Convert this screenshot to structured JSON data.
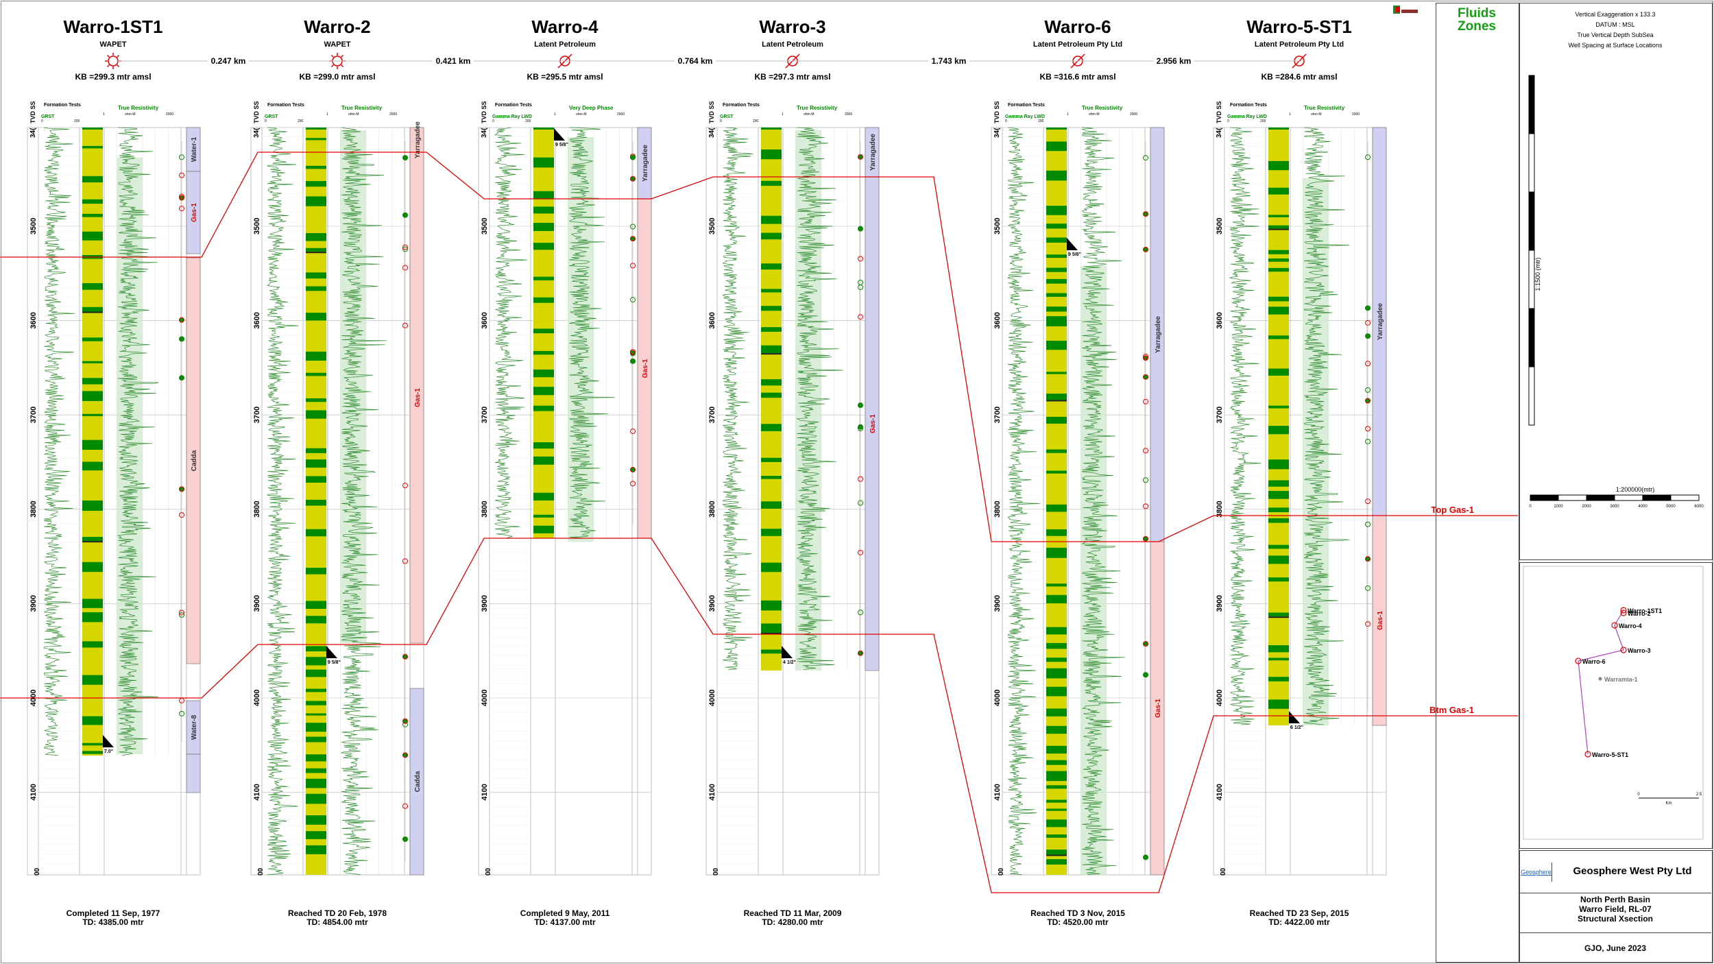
{
  "wells": [
    {
      "name": "Warro-1ST1",
      "operator": "WAPET",
      "kb": "KB =299.3 mtr amsl",
      "footer1": "Completed 11 Sep, 1977",
      "footer2": "TD: 4385.00 mtr",
      "symbol": "sun",
      "gr_label": "GRST",
      "res_label": "True Resistivity",
      "res_unit": "ohm-M",
      "depths": [
        "3500",
        "3600",
        "3700",
        "3800",
        "3900",
        "4000",
        "4100"
      ],
      "top_depth": "34(",
      "zones": [
        "Water-1",
        "Gas-1",
        "Cadda",
        "Water-8"
      ],
      "casing": "7.0\""
    },
    {
      "name": "Warro-2",
      "operator": "WAPET",
      "kb": "KB =299.0 mtr amsl",
      "footer1": "Reached TD 20 Feb, 1978",
      "footer2": "TD: 4854.00 mtr",
      "symbol": "sun",
      "gr_label": "GRST",
      "res_label": "True Resistivity",
      "res_unit": "ohm-M",
      "depths": [
        "3500",
        "3600",
        "3700",
        "3800",
        "3900",
        "4000",
        "4100"
      ],
      "top_depth": "34(",
      "zones": [
        "Yarragadee",
        "Gas-1",
        "Cadda"
      ],
      "casing": "9 5/8\""
    },
    {
      "name": "Warro-4",
      "operator": "Latent Petroleum",
      "kb": "KB =295.5 mtr amsl",
      "footer1": "Completed 9 May, 2011",
      "footer2": "TD: 4137.00 mtr",
      "symbol": "dry",
      "gr_label": "Gamma Ray LWD",
      "res_label": "Very Deep Phase",
      "res_unit": "ohm-M",
      "depths": [
        "3500",
        "3600",
        "3700",
        "3800",
        "3900",
        "4000",
        "4100"
      ],
      "top_depth": "34(",
      "zones": [
        "Yarragadee",
        "Gas-1"
      ],
      "casing": "9 5/8\""
    },
    {
      "name": "Warro-3",
      "operator": "Latent Petroleum",
      "kb": "KB =297.3 mtr amsl",
      "footer1": "Reached TD 11 Mar, 2009",
      "footer2": "TD: 4280.00 mtr",
      "symbol": "dry",
      "gr_label": "GRST",
      "res_label": "True Resistivity",
      "res_unit": "ohm-M",
      "depths": [
        "3500",
        "3600",
        "3700",
        "3800",
        "3900",
        "4000",
        "4100"
      ],
      "top_depth": "34(",
      "zones": [
        "Yarragadee",
        "Gas-1"
      ],
      "casing": "4 1/2\""
    },
    {
      "name": "Warro-6",
      "operator": "Latent Petroleum Pty Ltd",
      "kb": "KB =316.6 mtr amsl",
      "footer1": "Reached TD 3 Nov, 2015",
      "footer2": "TD: 4520.00 mtr",
      "symbol": "dry",
      "gr_label": "Gamma Ray LWD",
      "res_label": "True Resistivity",
      "res_unit": "ohm-M",
      "depths": [
        "3500",
        "3600",
        "3700",
        "3800",
        "3900",
        "4000",
        "4100"
      ],
      "top_depth": "34(",
      "zones": [
        "Yarragadee",
        "Gas-1"
      ],
      "casing": "9 5/8\""
    },
    {
      "name": "Warro-5-ST1",
      "operator": "Latent Petroleum Pty Ltd",
      "kb": "KB =284.6 mtr amsl",
      "footer1": "Reached TD 23 Sep, 2015",
      "footer2": "TD: 4422.00 mtr",
      "symbol": "dry",
      "gr_label": "Gamma Ray LWD",
      "res_label": "True Resistivity",
      "res_unit": "ohm-M",
      "depths": [
        "3500",
        "3600",
        "3700",
        "3800",
        "3900",
        "4000",
        "4100"
      ],
      "top_depth": "34(",
      "zones": [
        "Yarragadee",
        "Gas-1"
      ],
      "casing": "6 1/2\""
    }
  ],
  "spacings": [
    "0.247 km",
    "0.421 km",
    "0.764 km",
    "1.743 km",
    "2.956 km"
  ],
  "header_labels": {
    "formation_tests": "Formation Tests",
    "tvd": "TVD SS",
    "api": "api",
    "zero": "0",
    "scale_max": "200",
    "res_min": "1",
    "res_max": "2000"
  },
  "fluids_title_1": "Fluids",
  "fluids_title_2": "Zones",
  "markers": {
    "top": "Top Gas-1",
    "bottom": "Btm Gas-1"
  },
  "scale_panel": {
    "lines": [
      "Vertical Exaggeration x 133.3",
      "DATUM : MSL",
      "True Vertical Depth SubSea",
      "Well Spacing at Surface Locations"
    ],
    "vertical_scale": "1:1500 (mtr)",
    "horizontal_scale": "1:200000(mtr)",
    "hticks": [
      "0",
      "1000",
      "2000",
      "3000",
      "4000",
      "5000",
      "6000"
    ]
  },
  "map": {
    "labels": [
      "Warro-1ST1",
      "Warro-2",
      "Warro-4",
      "Warro-3",
      "Warro-6",
      "Warramia-1",
      "Warro-5-ST1"
    ],
    "scale": [
      "0",
      "2.5"
    ],
    "scale_unit": "Km"
  },
  "company": {
    "logo": "Geosphere",
    "name": "Geosphere West Pty Ltd",
    "project_1": "North Perth Basin",
    "project_2": "Warro Field, RL-07",
    "project_3": "Structural Xsection",
    "author": "GJO, June 2023"
  },
  "colors": {
    "green": "#008a00",
    "yellow": "#d6d600",
    "red": "#e00000",
    "zone_blue": "#d0d0f0",
    "zone_pink": "#f8d0d0",
    "res_fill": "#cfe8cf"
  }
}
